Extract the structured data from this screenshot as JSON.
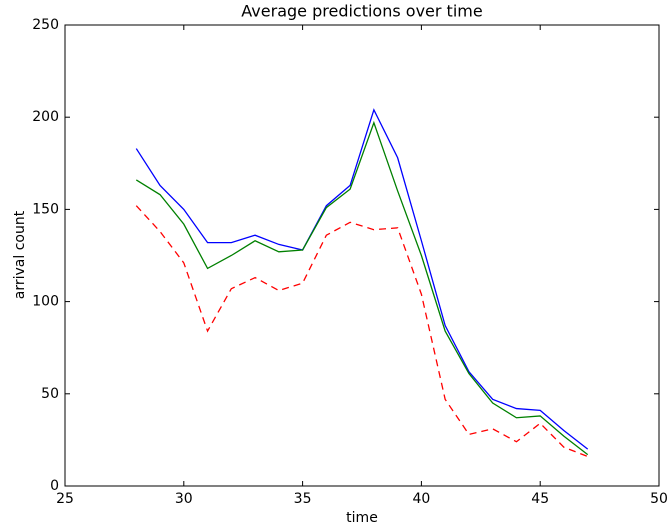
{
  "chart_data": {
    "type": "line",
    "title": "Average predictions over time",
    "x_label": "time",
    "y_label": "arrival count",
    "x": [
      28,
      29,
      30,
      31,
      32,
      33,
      34,
      35,
      36,
      37,
      38,
      39,
      40,
      41,
      42,
      43,
      44,
      45,
      46,
      47
    ],
    "series": [
      {
        "color": "#0000ff",
        "style": "solid",
        "values": [
          183,
          163,
          150,
          132,
          132,
          136,
          131,
          128,
          152,
          163,
          204,
          178,
          133,
          87,
          62,
          47,
          42,
          41,
          30,
          20
        ]
      },
      {
        "color": "#008000",
        "style": "solid",
        "values": [
          166,
          158,
          142,
          118,
          125,
          133,
          127,
          128,
          151,
          161,
          197,
          160,
          125,
          84,
          61,
          45,
          37,
          38,
          27,
          17
        ]
      },
      {
        "color": "#ff0000",
        "style": "dashed",
        "values": [
          152,
          138,
          121,
          84,
          107,
          113,
          106,
          110,
          136,
          143,
          139,
          140,
          104,
          47,
          28,
          31,
          24,
          34,
          21,
          16
        ]
      }
    ],
    "xlim": [
      25,
      50
    ],
    "xticks": [
      25,
      30,
      35,
      40,
      45,
      50
    ],
    "ylim": [
      0,
      250
    ],
    "yticks": [
      0,
      50,
      100,
      150,
      200,
      250
    ],
    "grid": false
  }
}
